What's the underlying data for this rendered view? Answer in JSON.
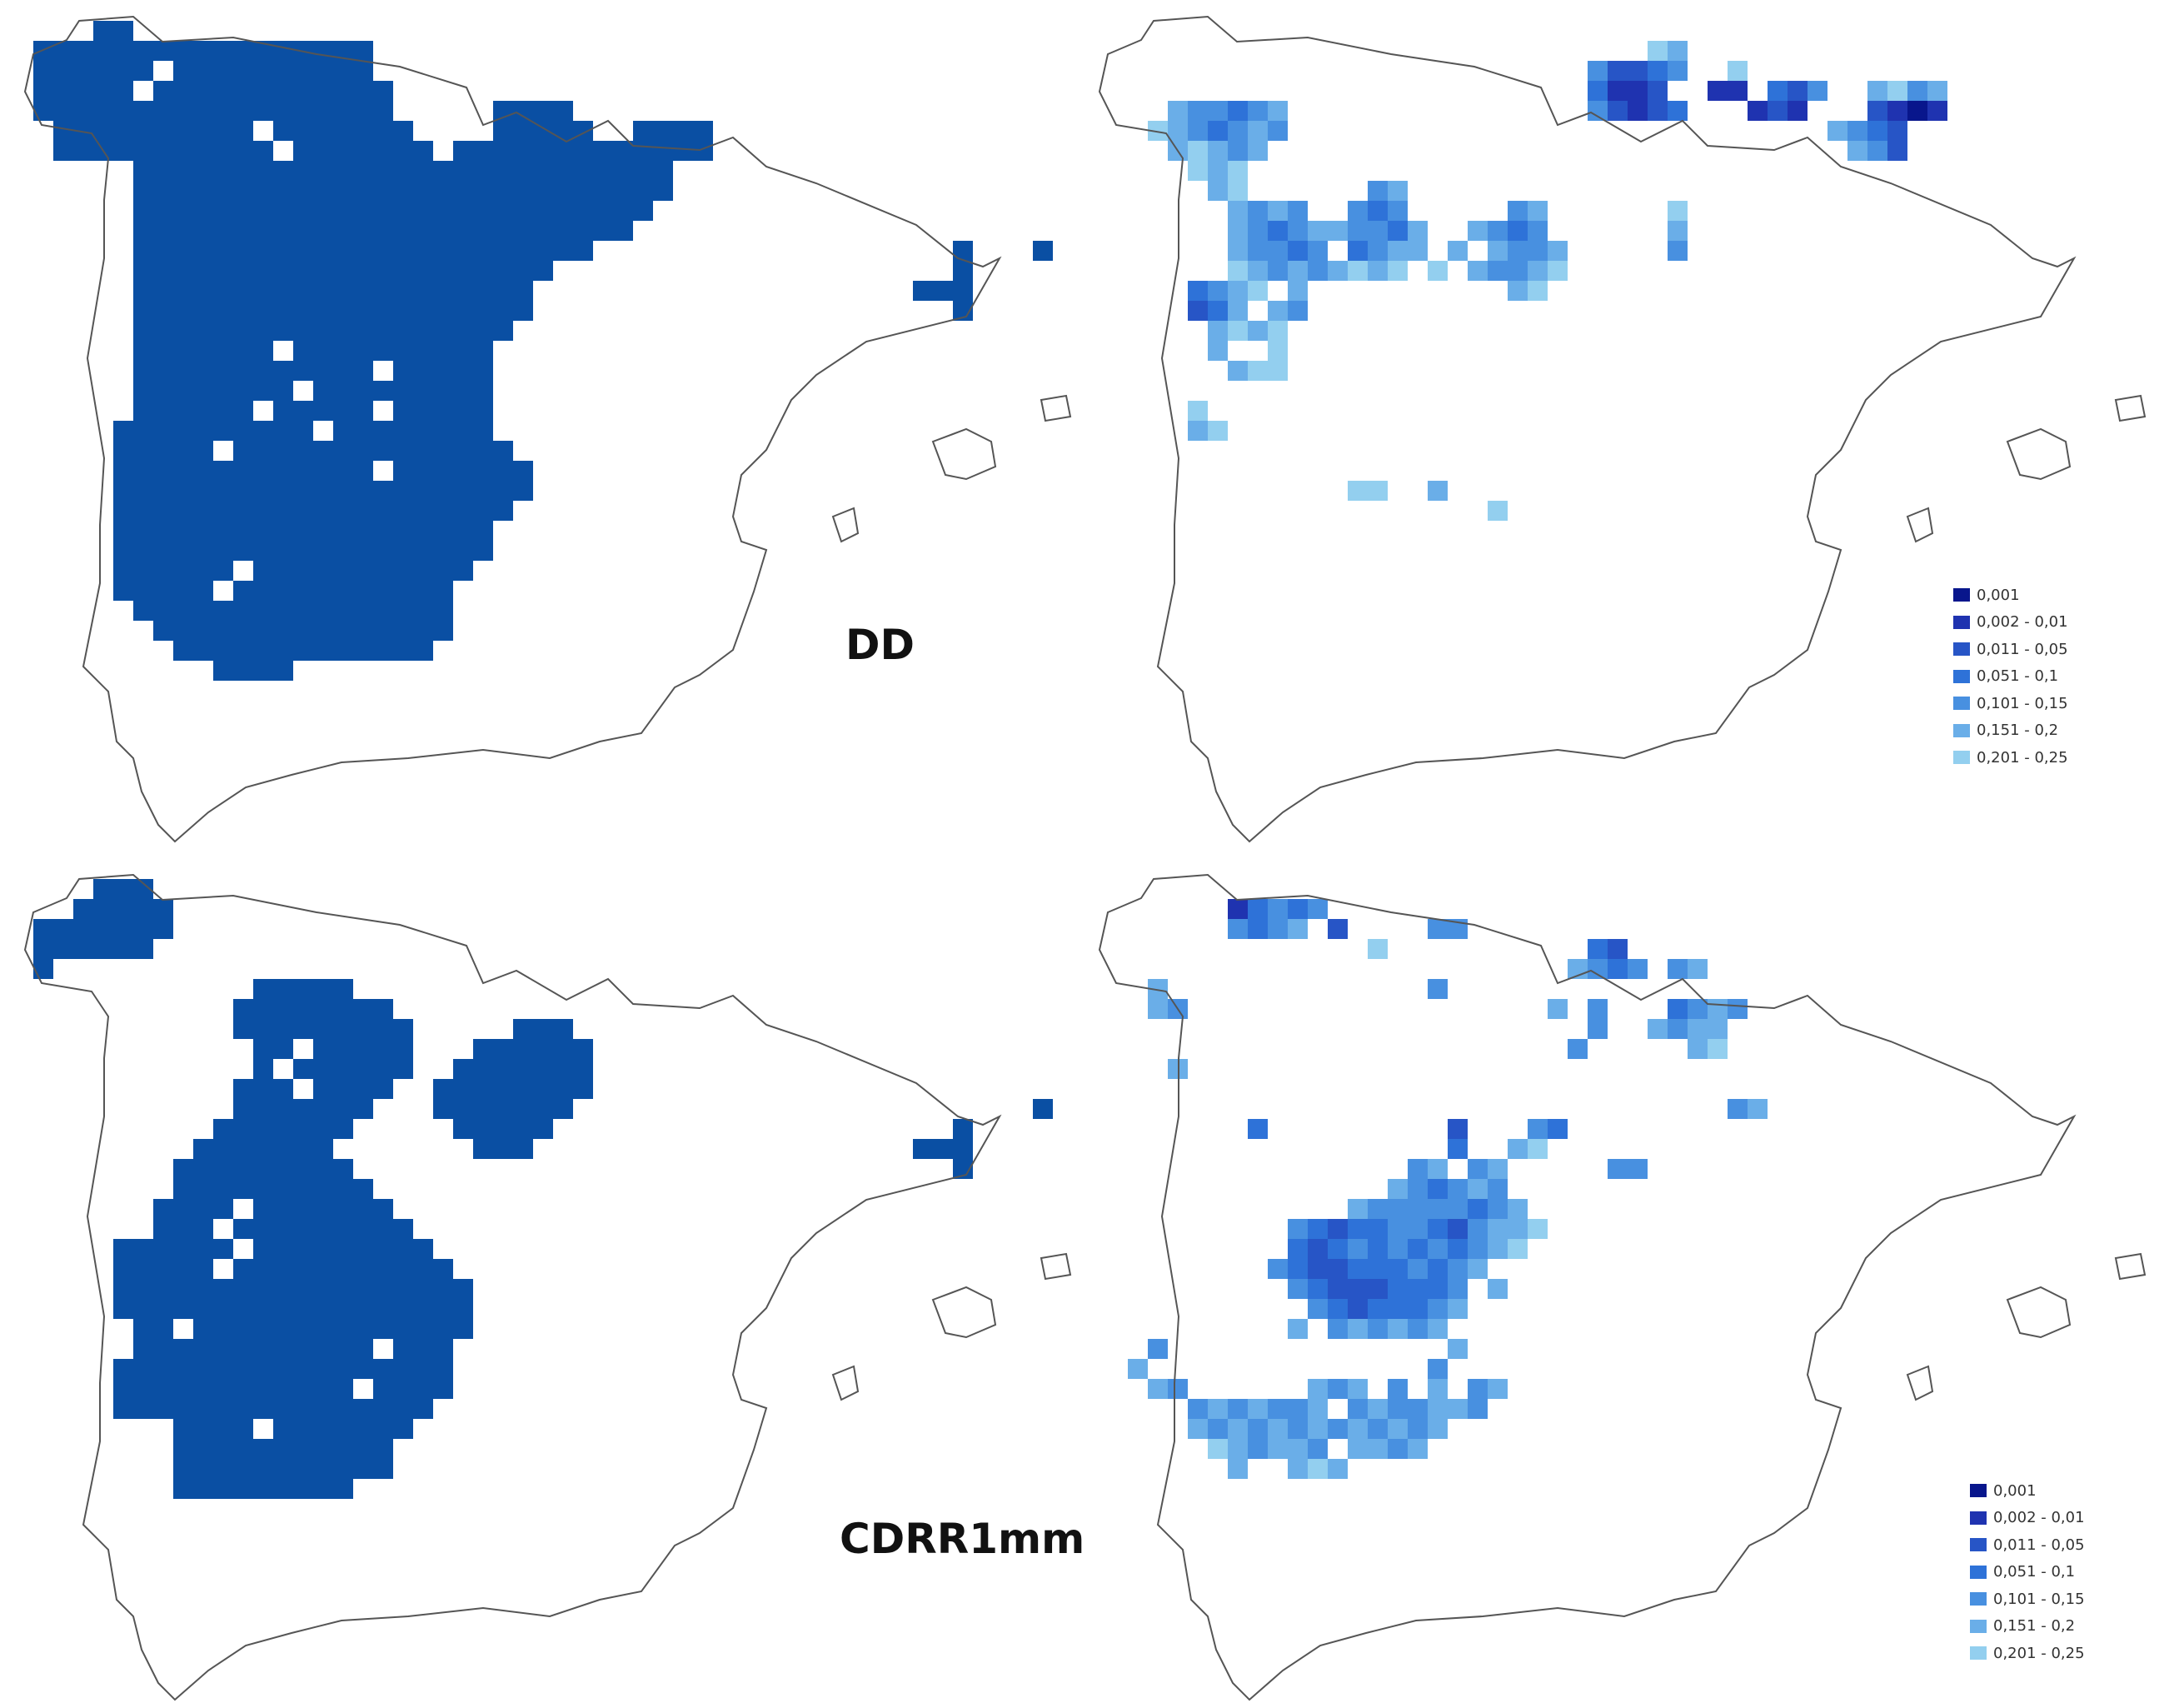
{
  "figure": {
    "panels": [
      {
        "id": "dd-significance",
        "index_label": "DD",
        "layer": "significance mask",
        "fill_color": "#0a4fa3"
      },
      {
        "id": "dd-pvalues",
        "index_label": "DD",
        "layer": "p-value classes"
      },
      {
        "id": "cdrr1mm-significance",
        "index_label": "CDRR1mm",
        "layer": "significance mask",
        "fill_color": "#0a4fa3"
      },
      {
        "id": "cdrr1mm-pvalues",
        "index_label": "CDRR1mm",
        "layer": "p-value classes"
      }
    ],
    "labels": {
      "dd": "DD",
      "cdrr": "CDRR1mm"
    }
  },
  "legend_dd": {
    "items": [
      {
        "label": "0,001",
        "color": "#08168c"
      },
      {
        "label": "0,002 - 0,01",
        "color": "#1f33b0"
      },
      {
        "label": "0,011 - 0,05",
        "color": "#2755c6"
      },
      {
        "label": "0,051 - 0,1",
        "color": "#2e72d8"
      },
      {
        "label": "0,101 - 0,15",
        "color": "#4890e0"
      },
      {
        "label": "0,151 - 0,2",
        "color": "#6aaee8"
      },
      {
        "label": "0,201 - 0,25",
        "color": "#93cfef"
      }
    ]
  },
  "legend_cdrr": {
    "items": [
      {
        "label": "0,001",
        "color": "#08168c"
      },
      {
        "label": "0,002 - 0,01",
        "color": "#1f33b0"
      },
      {
        "label": "0,011 - 0,05",
        "color": "#2755c6"
      },
      {
        "label": "0,051 - 0,1",
        "color": "#2e72d8"
      },
      {
        "label": "0,101 - 0,15",
        "color": "#4890e0"
      },
      {
        "label": "0,151 - 0,2",
        "color": "#6aaee8"
      },
      {
        "label": "0,201 - 0,25",
        "color": "#93cfef"
      }
    ]
  },
  "map_style": {
    "outline_color": "#555555",
    "land_fill": "#ffffff"
  }
}
